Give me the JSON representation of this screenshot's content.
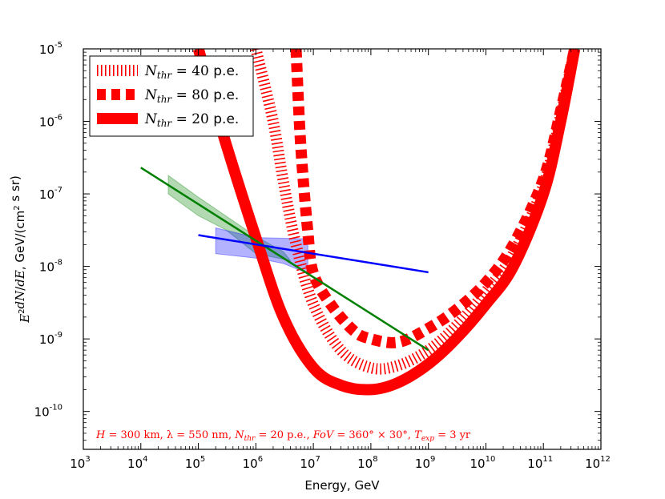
{
  "chart_data": {
    "type": "line",
    "xscale": "log",
    "yscale": "log",
    "xlim": [
      1000,
      1000000000000
    ],
    "ylim": [
      3e-11,
      1e-05
    ],
    "xlabel": "Energy, GeV",
    "ylabel": "E²dN/dE, GeV/(cm² s sr)",
    "x_ticks": [
      {
        "base": "10",
        "exp": "3",
        "value": 1000
      },
      {
        "base": "10",
        "exp": "4",
        "value": 10000
      },
      {
        "base": "10",
        "exp": "5",
        "value": 100000
      },
      {
        "base": "10",
        "exp": "6",
        "value": 1000000
      },
      {
        "base": "10",
        "exp": "7",
        "value": 10000000
      },
      {
        "base": "10",
        "exp": "8",
        "value": 100000000
      },
      {
        "base": "10",
        "exp": "9",
        "value": 1000000000
      },
      {
        "base": "10",
        "exp": "10",
        "value": 10000000000
      },
      {
        "base": "10",
        "exp": "11",
        "value": 100000000000
      },
      {
        "base": "10",
        "exp": "12",
        "value": 1000000000000
      }
    ],
    "y_ticks": [
      {
        "base": "10",
        "exp": "-10",
        "value": 1e-10
      },
      {
        "base": "10",
        "exp": "-9",
        "value": 1e-09
      },
      {
        "base": "10",
        "exp": "-8",
        "value": 1e-08
      },
      {
        "base": "10",
        "exp": "-7",
        "value": 1e-07
      },
      {
        "base": "10",
        "exp": "-6",
        "value": 1e-06
      },
      {
        "base": "10",
        "exp": "-5",
        "value": 1e-05
      }
    ],
    "series": [
      {
        "name": "N_thr = 20 p.e.",
        "label_math": "N",
        "label_sub": "thr",
        "label_rest": " = 20 ",
        "label_unit": "p.e.",
        "color": "#ff0000",
        "style": "solid-thick",
        "points": [
          [
            100000,
            1e-05
          ],
          [
            300000,
            5e-07
          ],
          [
            1000000,
            2.5e-08
          ],
          [
            3000000,
            2e-09
          ],
          [
            10000000,
            4e-10
          ],
          [
            30000000,
            2.3e-10
          ],
          [
            100000000,
            2e-10
          ],
          [
            300000000,
            2.5e-10
          ],
          [
            1000000000,
            4.5e-10
          ],
          [
            3000000000,
            1e-09
          ],
          [
            10000000000,
            3e-09
          ],
          [
            30000000000,
            1e-08
          ],
          [
            100000000000,
            1e-07
          ],
          [
            200000000000,
            1e-06
          ],
          [
            350000000000,
            1e-05
          ]
        ]
      },
      {
        "name": "N_thr = 40 p.e.",
        "label_math": "N",
        "label_sub": "thr",
        "label_rest": " = 40 ",
        "label_unit": "p.e.",
        "color": "#ff0000",
        "style": "hatched",
        "points": [
          [
            1000000,
            1e-05
          ],
          [
            2000000,
            1e-06
          ],
          [
            3000000,
            1.5e-07
          ],
          [
            5000000,
            2e-08
          ],
          [
            10000000,
            3e-09
          ],
          [
            30000000,
            7e-10
          ],
          [
            100000000,
            4e-10
          ],
          [
            300000000,
            4.3e-10
          ],
          [
            1000000000,
            7e-10
          ],
          [
            3000000000,
            1.5e-09
          ],
          [
            10000000000,
            4.5e-09
          ],
          [
            30000000000,
            1.5e-08
          ],
          [
            100000000000,
            1.3e-07
          ],
          [
            200000000000,
            1.2e-06
          ],
          [
            350000000000,
            1e-05
          ]
        ]
      },
      {
        "name": "N_thr = 80 p.e.",
        "label_math": "N",
        "label_sub": "thr",
        "label_rest": " = 80 ",
        "label_unit": "p.e.",
        "color": "#ff0000",
        "style": "dashed-thick",
        "points": [
          [
            5000000,
            1e-05
          ],
          [
            6000000,
            5e-07
          ],
          [
            8000000,
            3e-08
          ],
          [
            10000000,
            8e-09
          ],
          [
            20000000,
            3e-09
          ],
          [
            50000000,
            1.3e-09
          ],
          [
            100000000,
            1e-09
          ],
          [
            300000000,
            9e-10
          ],
          [
            1000000000,
            1.4e-09
          ],
          [
            3000000000,
            2.5e-09
          ],
          [
            10000000000,
            6e-09
          ],
          [
            30000000000,
            2e-08
          ],
          [
            100000000000,
            1.6e-07
          ],
          [
            200000000000,
            1.4e-06
          ],
          [
            350000000000,
            1e-05
          ]
        ]
      },
      {
        "name": "green power law",
        "color": "#008000",
        "style": "line",
        "points": [
          [
            10000,
            2.3e-07
          ],
          [
            1000000000,
            7e-10
          ]
        ]
      },
      {
        "name": "blue power law",
        "color": "#0000ff",
        "style": "line",
        "points": [
          [
            100000,
            2.7e-08
          ],
          [
            1000000000,
            8.3e-09
          ]
        ]
      }
    ],
    "bands": [
      {
        "name": "green band",
        "color": "#008000",
        "polygon": [
          [
            30000,
            1.8e-07
          ],
          [
            100000,
            9e-08
          ],
          [
            1000000,
            2.6e-08
          ],
          [
            3000000,
            1.6e-08
          ],
          [
            4000000,
            1.2e-08
          ],
          [
            1000000,
            1.5e-08
          ],
          [
            300000,
            3.2e-08
          ],
          [
            100000,
            5e-08
          ],
          [
            30000,
            1e-07
          ]
        ]
      },
      {
        "name": "blue band",
        "color": "#0000ff",
        "polygon": [
          [
            200000,
            3.4e-08
          ],
          [
            1000000,
            2.5e-08
          ],
          [
            8000000,
            2.4e-08
          ],
          [
            8000000,
            8e-09
          ],
          [
            3000000,
            1.1e-08
          ],
          [
            1000000,
            1.3e-08
          ],
          [
            200000,
            1.5e-08
          ]
        ]
      }
    ],
    "legend": {
      "placement": "top-left"
    },
    "annotation": {
      "text": "H = 300 km,  λ = 550 nm,  N_thr = 20 p.e.,  FoV = 360° × 30°,  T_exp = 3 yr",
      "color": "#ff0000",
      "parts": [
        {
          "t": "H",
          "i": true
        },
        {
          "t": " = 300 km,  λ = 550 nm,  "
        },
        {
          "t": "N",
          "i": true
        },
        {
          "t": "thr",
          "sub": true,
          "i": true
        },
        {
          "t": " = 20 p.e.,  "
        },
        {
          "t": "FoV",
          "i": true
        },
        {
          "t": " = 360° × 30°,  "
        },
        {
          "t": "T",
          "i": true
        },
        {
          "t": "exp",
          "sub": true,
          "i": true
        },
        {
          "t": " = 3 yr"
        }
      ]
    }
  }
}
